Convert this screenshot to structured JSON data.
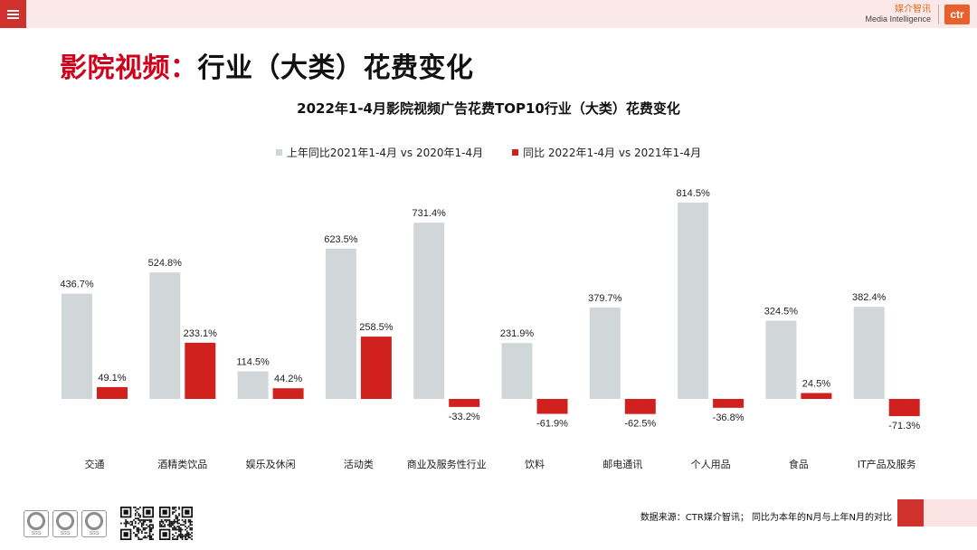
{
  "header": {
    "menu_icon": "menu-icon",
    "brand_cn": "媒介智讯",
    "brand_en": "Media Intelligence",
    "brand_logo": "ctr"
  },
  "page": {
    "title_prefix": "影院视频：",
    "title_main": "行业（大类）花费变化"
  },
  "chart_data": {
    "type": "bar",
    "title": "2022年1-4月影院视频广告花费TOP10行业（大类）花费变化",
    "categories": [
      "交通",
      "酒精类饮品",
      "娱乐及休闲",
      "活动类",
      "商业及服务性行业",
      "饮料",
      "邮电通讯",
      "个人用品",
      "食品",
      "IT产品及服务"
    ],
    "series": [
      {
        "name": "上年同比2021年1-4月 vs 2020年1-4月",
        "color": "#d1d6d9",
        "values": [
          436.7,
          524.8,
          114.5,
          623.5,
          731.4,
          231.9,
          379.7,
          814.5,
          324.5,
          382.4
        ],
        "labels": [
          "436.7%",
          "524.8%",
          "114.5%",
          "623.5%",
          "731.4%",
          "231.9%",
          "379.7%",
          "814.5%",
          "324.5%",
          "382.4%"
        ]
      },
      {
        "name": "同比 2022年1-4月 vs 2021年1-4月",
        "color": "#d0211f",
        "values": [
          49.1,
          233.1,
          44.2,
          258.5,
          -33.2,
          -61.9,
          -62.5,
          -36.8,
          24.5,
          -71.3
        ],
        "labels": [
          "49.1%",
          "233.1%",
          "44.2%",
          "258.5%",
          "-33.2%",
          "-61.9%",
          "-62.5%",
          "-36.8%",
          "24.5%",
          "-71.3%"
        ]
      }
    ],
    "xlabel": "",
    "ylabel": "",
    "ylim": [
      -100,
      850
    ],
    "grid": false,
    "legend": "top-center"
  },
  "footer": {
    "note": "数据来源：CTR媒介智讯； 同比为本年的N月与上年N月的对比",
    "seal_label": "SGS"
  }
}
